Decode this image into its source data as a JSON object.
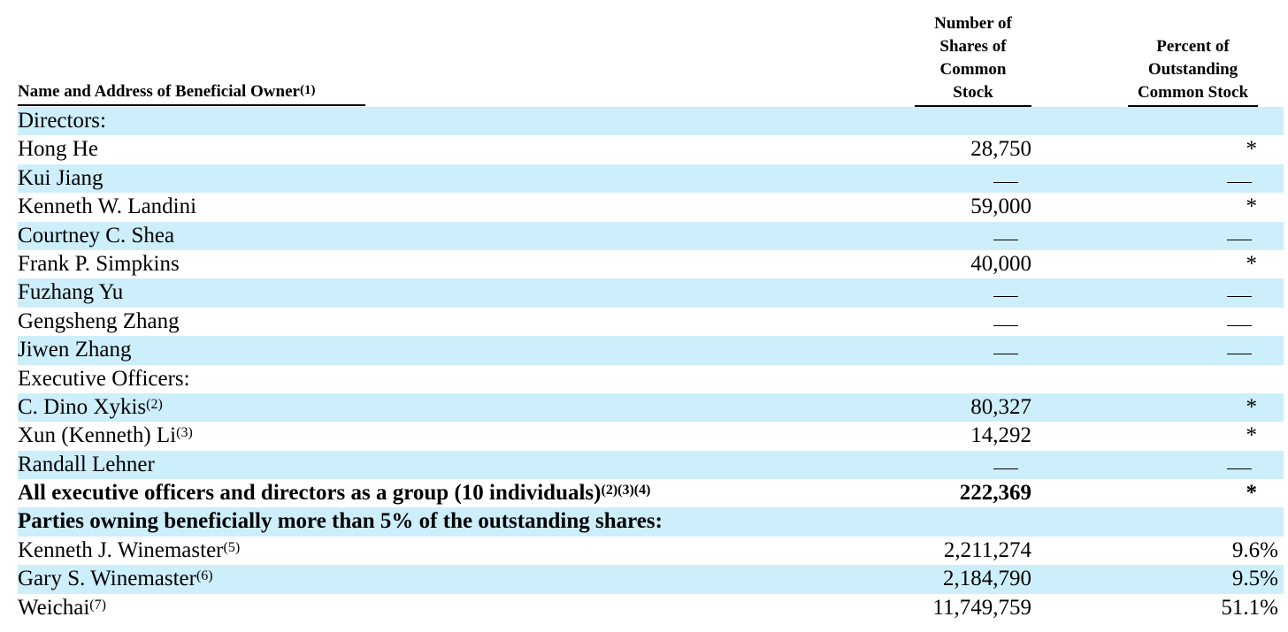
{
  "headers": {
    "name": "Name and Address of Beneficial Owner",
    "name_note": "(1)",
    "shares_lines": [
      "Number of",
      "Shares of",
      "Common",
      "Stock"
    ],
    "pct_lines": [
      "Percent of",
      "Outstanding",
      "Common Stock"
    ]
  },
  "rows": [
    {
      "name": "Directors:",
      "note": "",
      "shares": "",
      "pct": "",
      "shaded": true,
      "bold": false
    },
    {
      "name": "Hong He",
      "note": "",
      "shares": "28,750",
      "pct": "*",
      "shaded": false,
      "bold": false
    },
    {
      "name": "Kui Jiang",
      "note": "",
      "shares": "—",
      "pct": "—",
      "shaded": true,
      "bold": false
    },
    {
      "name": "Kenneth W. Landini",
      "note": "",
      "shares": "59,000",
      "pct": "*",
      "shaded": false,
      "bold": false
    },
    {
      "name": "Courtney C. Shea",
      "note": "",
      "shares": "—",
      "pct": "—",
      "shaded": true,
      "bold": false
    },
    {
      "name": "Frank P. Simpkins",
      "note": "",
      "shares": "40,000",
      "pct": "*",
      "shaded": false,
      "bold": false
    },
    {
      "name": "Fuzhang Yu",
      "note": "",
      "shares": "—",
      "pct": "—",
      "shaded": true,
      "bold": false
    },
    {
      "name": "Gengsheng Zhang",
      "note": "",
      "shares": "—",
      "pct": "—",
      "shaded": false,
      "bold": false
    },
    {
      "name": "Jiwen Zhang",
      "note": "",
      "shares": "—",
      "pct": "—",
      "shaded": true,
      "bold": false
    },
    {
      "name": "Executive Officers:",
      "note": "",
      "shares": "",
      "pct": "",
      "shaded": false,
      "bold": false
    },
    {
      "name": "C. Dino Xykis",
      "note": "(2)",
      "shares": "80,327",
      "pct": "*",
      "shaded": true,
      "bold": false
    },
    {
      "name": "Xun (Kenneth) Li",
      "note": "(3)",
      "shares": "14,292",
      "pct": "*",
      "shaded": false,
      "bold": false
    },
    {
      "name": "Randall Lehner",
      "note": "",
      "shares": "—",
      "pct": "—",
      "shaded": true,
      "bold": false
    },
    {
      "name": "All executive officers and directors as a group (10 individuals)",
      "note": "(2)(3)(4)",
      "shares": "222,369",
      "pct": "*",
      "shaded": false,
      "bold": true
    },
    {
      "name": "Parties owning beneficially more than 5% of the outstanding shares:",
      "note": "",
      "shares": "",
      "pct": "",
      "shaded": true,
      "bold": true
    },
    {
      "name": "Kenneth J. Winemaster",
      "note": "(5)",
      "shares": "2,211,274",
      "pct": "9.6%",
      "shaded": false,
      "bold": false
    },
    {
      "name": "Gary S. Winemaster",
      "note": "(6)",
      "shares": "2,184,790",
      "pct": "9.5%",
      "shaded": true,
      "bold": false
    },
    {
      "name": "Weichai",
      "note": "(7)",
      "shares": "11,749,759",
      "pct": "51.1%",
      "shaded": false,
      "bold": false
    }
  ]
}
